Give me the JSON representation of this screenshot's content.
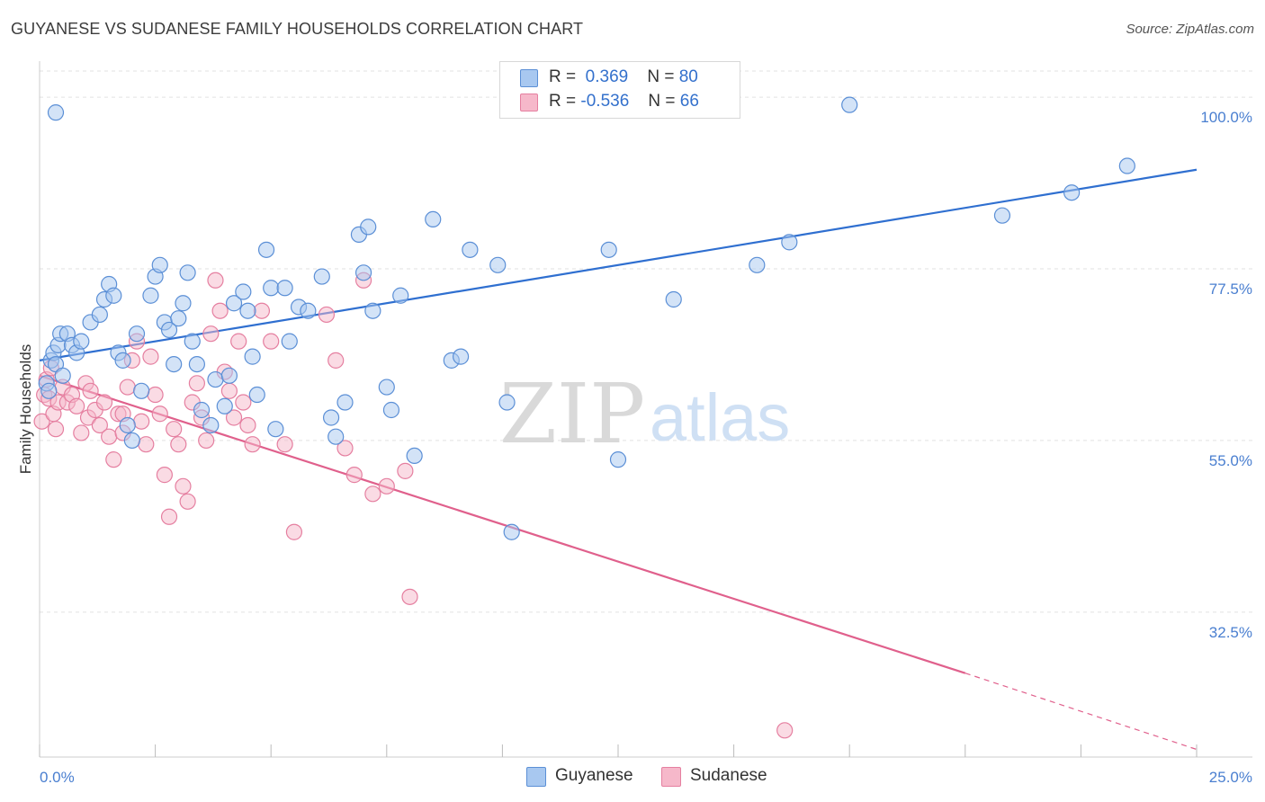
{
  "title": "GUYANESE VS SUDANESE FAMILY HOUSEHOLDS CORRELATION CHART",
  "source": "Source: ZipAtlas.com",
  "legend": {
    "rows": [
      {
        "r_label": "R =",
        "r_value": "0.369",
        "n_label": "N =",
        "n_value": "80"
      },
      {
        "r_label": "R =",
        "r_value": "-0.536",
        "n_label": "N =",
        "n_value": "66"
      }
    ]
  },
  "bottom_legend": [
    "Guyanese",
    "Sudanese"
  ],
  "watermark": {
    "zip": "ZIP",
    "atlas": "atlas"
  },
  "colors": {
    "guyanese_fill": "#a8c8f0",
    "guyanese_stroke": "#5b8fd6",
    "guyanese_line": "#2f6fd0",
    "sudanese_fill": "#f6b8ca",
    "sudanese_stroke": "#e57fa0",
    "sudanese_line": "#e0608c",
    "tick_text": "#4a7fd0",
    "grid": "#e2e2e2"
  },
  "chart_data": {
    "type": "scatter",
    "title": "GUYANESE VS SUDANESE FAMILY HOUSEHOLDS CORRELATION CHART",
    "xlabel": "",
    "ylabel": "Family Households",
    "xlim": [
      0,
      25
    ],
    "ylim": [
      13.5,
      104.5
    ],
    "x_tick_labels": [
      {
        "value": 0,
        "label": "0.0%"
      },
      {
        "value": 25,
        "label": "25.0%"
      }
    ],
    "y_ticks": [
      {
        "value": 100,
        "label": "100.0%"
      },
      {
        "value": 77.5,
        "label": "77.5%"
      },
      {
        "value": 55,
        "label": "55.0%"
      },
      {
        "value": 32.5,
        "label": "32.5%"
      }
    ],
    "series": [
      {
        "name": "Guyanese",
        "r": 0.369,
        "n": 80,
        "trend": {
          "x0": 0,
          "y0": 65.5,
          "x1": 25,
          "y1": 90.5
        },
        "points": [
          [
            0.15,
            62.5
          ],
          [
            0.2,
            61.5
          ],
          [
            0.25,
            65.5
          ],
          [
            0.3,
            66.5
          ],
          [
            0.35,
            65
          ],
          [
            0.4,
            67.5
          ],
          [
            0.45,
            69
          ],
          [
            0.5,
            63.5
          ],
          [
            0.6,
            69
          ],
          [
            0.7,
            67.5
          ],
          [
            0.8,
            66.5
          ],
          [
            0.9,
            68
          ],
          [
            1.1,
            70.5
          ],
          [
            1.3,
            71.5
          ],
          [
            1.4,
            73.5
          ],
          [
            1.5,
            75.5
          ],
          [
            1.6,
            74
          ],
          [
            1.7,
            66.5
          ],
          [
            1.8,
            65.5
          ],
          [
            1.9,
            57
          ],
          [
            2.0,
            55
          ],
          [
            2.1,
            69
          ],
          [
            2.2,
            61.5
          ],
          [
            2.4,
            74
          ],
          [
            2.5,
            76.5
          ],
          [
            2.6,
            78
          ],
          [
            2.7,
            70.5
          ],
          [
            2.8,
            69.5
          ],
          [
            2.9,
            65
          ],
          [
            3.0,
            71
          ],
          [
            3.1,
            73
          ],
          [
            3.2,
            77
          ],
          [
            3.3,
            68
          ],
          [
            3.4,
            65
          ],
          [
            3.5,
            59
          ],
          [
            3.7,
            57
          ],
          [
            3.8,
            63
          ],
          [
            4.0,
            59.5
          ],
          [
            4.1,
            63.5
          ],
          [
            4.2,
            73
          ],
          [
            4.4,
            74.5
          ],
          [
            4.5,
            72
          ],
          [
            4.6,
            66
          ],
          [
            4.7,
            61
          ],
          [
            4.9,
            80
          ],
          [
            5.0,
            75
          ],
          [
            5.1,
            56.5
          ],
          [
            5.3,
            75
          ],
          [
            5.4,
            68
          ],
          [
            5.6,
            72.5
          ],
          [
            5.8,
            72
          ],
          [
            6.1,
            76.5
          ],
          [
            6.3,
            58
          ],
          [
            6.4,
            55.5
          ],
          [
            6.6,
            60
          ],
          [
            6.9,
            82
          ],
          [
            7.0,
            77
          ],
          [
            7.1,
            83
          ],
          [
            7.2,
            72
          ],
          [
            7.5,
            62
          ],
          [
            7.6,
            59
          ],
          [
            7.8,
            74
          ],
          [
            8.1,
            53
          ],
          [
            8.5,
            84
          ],
          [
            8.9,
            65.5
          ],
          [
            9.1,
            66
          ],
          [
            9.3,
            80
          ],
          [
            9.9,
            78
          ],
          [
            10.1,
            60
          ],
          [
            10.2,
            43
          ],
          [
            12.3,
            80
          ],
          [
            12.5,
            52.5
          ],
          [
            13.7,
            73.5
          ],
          [
            15.5,
            78
          ],
          [
            16.2,
            81
          ],
          [
            17.5,
            99
          ],
          [
            20.8,
            84.5
          ],
          [
            22.3,
            87.5
          ],
          [
            23.5,
            91
          ],
          [
            0.35,
            98
          ]
        ]
      },
      {
        "name": "Sudanese",
        "r": -0.536,
        "n": 66,
        "trend": {
          "x0": 0,
          "y0": 63.5,
          "x1": 20,
          "y1": 24.5,
          "dash_to_x": 25,
          "dash_to_y": 14.5
        },
        "points": [
          [
            0.05,
            57.5
          ],
          [
            0.1,
            61
          ],
          [
            0.15,
            63
          ],
          [
            0.2,
            60.5
          ],
          [
            0.25,
            64.5
          ],
          [
            0.3,
            58.5
          ],
          [
            0.35,
            56.5
          ],
          [
            0.4,
            60
          ],
          [
            0.5,
            62
          ],
          [
            0.6,
            60
          ],
          [
            0.7,
            61
          ],
          [
            0.8,
            59.5
          ],
          [
            0.9,
            56
          ],
          [
            1.0,
            62.5
          ],
          [
            1.05,
            58
          ],
          [
            1.1,
            61.5
          ],
          [
            1.2,
            59
          ],
          [
            1.3,
            57
          ],
          [
            1.4,
            60
          ],
          [
            1.5,
            55.5
          ],
          [
            1.6,
            52.5
          ],
          [
            1.7,
            58.5
          ],
          [
            1.8,
            56
          ],
          [
            1.9,
            62
          ],
          [
            2.0,
            65.5
          ],
          [
            2.1,
            68
          ],
          [
            2.2,
            57.5
          ],
          [
            2.3,
            54.5
          ],
          [
            2.4,
            66
          ],
          [
            2.5,
            61
          ],
          [
            2.6,
            58.5
          ],
          [
            2.7,
            50.5
          ],
          [
            2.8,
            45
          ],
          [
            2.9,
            56.5
          ],
          [
            3.0,
            54.5
          ],
          [
            3.1,
            49
          ],
          [
            3.2,
            47
          ],
          [
            3.3,
            60
          ],
          [
            3.4,
            62.5
          ],
          [
            3.5,
            58
          ],
          [
            3.6,
            55
          ],
          [
            3.7,
            69
          ],
          [
            3.8,
            76
          ],
          [
            3.9,
            72
          ],
          [
            4.0,
            64
          ],
          [
            4.1,
            61.5
          ],
          [
            4.2,
            58
          ],
          [
            4.3,
            68
          ],
          [
            4.4,
            60
          ],
          [
            4.5,
            57
          ],
          [
            4.6,
            54.5
          ],
          [
            4.8,
            72
          ],
          [
            5.0,
            68
          ],
          [
            5.3,
            54.5
          ],
          [
            5.5,
            43
          ],
          [
            6.2,
            71.5
          ],
          [
            6.4,
            65.5
          ],
          [
            6.6,
            54
          ],
          [
            6.8,
            50.5
          ],
          [
            7.0,
            76
          ],
          [
            7.2,
            48
          ],
          [
            7.5,
            49
          ],
          [
            7.9,
            51
          ],
          [
            8.0,
            34.5
          ],
          [
            16.1,
            17
          ],
          [
            1.8,
            58.5
          ]
        ]
      }
    ]
  }
}
